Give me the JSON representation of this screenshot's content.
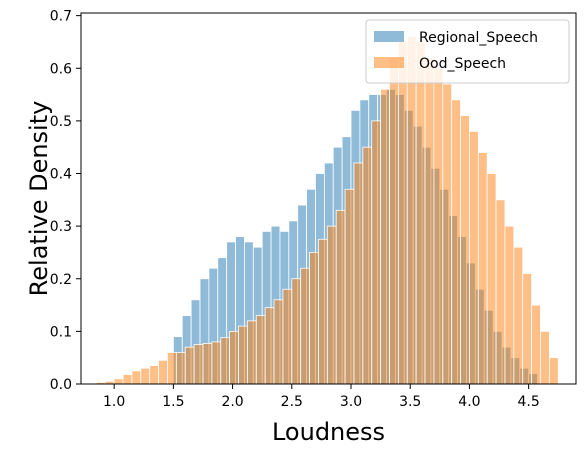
{
  "chart_data": {
    "type": "bar",
    "subtype": "overlapping-histogram",
    "title": "",
    "xlabel": "Loudness",
    "ylabel": "Relative Density",
    "xlim": [
      0.72,
      4.9
    ],
    "ylim": [
      0,
      0.705
    ],
    "xticks": [
      "1.0",
      "1.5",
      "2.0",
      "2.5",
      "3.0",
      "3.5",
      "4.0",
      "4.5"
    ],
    "yticks": [
      "0.0",
      "0.1",
      "0.2",
      "0.3",
      "0.4",
      "0.5",
      "0.6",
      "0.7"
    ],
    "grid": false,
    "legend_position": "top-right",
    "series": [
      {
        "name": "Regional_Speech",
        "color": "#1f77b4",
        "alpha": 0.5,
        "bins": [
          1.5,
          1.575,
          1.65,
          1.725,
          1.8,
          1.875,
          1.95,
          2.025,
          2.1,
          2.175,
          2.25,
          2.325,
          2.4,
          2.475,
          2.55,
          2.625,
          2.7,
          2.775,
          2.85,
          2.925,
          3.0,
          3.075,
          3.15,
          3.225,
          3.3,
          3.375,
          3.45,
          3.525,
          3.6,
          3.675,
          3.75,
          3.825,
          3.9,
          3.975,
          4.05,
          4.125,
          4.2,
          4.275,
          4.35,
          4.425,
          4.5
        ],
        "values": [
          0.09,
          0.13,
          0.16,
          0.2,
          0.22,
          0.24,
          0.27,
          0.28,
          0.27,
          0.26,
          0.29,
          0.3,
          0.29,
          0.31,
          0.34,
          0.37,
          0.4,
          0.42,
          0.45,
          0.47,
          0.52,
          0.54,
          0.55,
          0.55,
          0.56,
          0.55,
          0.52,
          0.49,
          0.45,
          0.41,
          0.37,
          0.32,
          0.28,
          0.23,
          0.18,
          0.14,
          0.1,
          0.07,
          0.05,
          0.03,
          0.02
        ]
      },
      {
        "name": "Ood_Speech",
        "color": "#ff7f0e",
        "alpha": 0.5,
        "bins": [
          0.85,
          0.925,
          1.0,
          1.075,
          1.15,
          1.225,
          1.3,
          1.375,
          1.45,
          1.525,
          1.6,
          1.675,
          1.75,
          1.825,
          1.9,
          1.975,
          2.05,
          2.125,
          2.2,
          2.275,
          2.35,
          2.425,
          2.5,
          2.575,
          2.65,
          2.725,
          2.8,
          2.875,
          2.95,
          3.025,
          3.1,
          3.175,
          3.25,
          3.325,
          3.4,
          3.475,
          3.55,
          3.625,
          3.7,
          3.775,
          3.85,
          3.925,
          4.0,
          4.075,
          4.15,
          4.225,
          4.3,
          4.375,
          4.45,
          4.525,
          4.6,
          4.675
        ],
        "values": [
          0.003,
          0.005,
          0.01,
          0.018,
          0.025,
          0.03,
          0.035,
          0.045,
          0.06,
          0.06,
          0.07,
          0.075,
          0.077,
          0.08,
          0.088,
          0.1,
          0.11,
          0.12,
          0.13,
          0.145,
          0.16,
          0.18,
          0.2,
          0.22,
          0.25,
          0.275,
          0.3,
          0.33,
          0.37,
          0.42,
          0.45,
          0.5,
          0.56,
          0.62,
          0.65,
          0.66,
          0.65,
          0.62,
          0.6,
          0.57,
          0.54,
          0.51,
          0.48,
          0.44,
          0.4,
          0.35,
          0.3,
          0.26,
          0.21,
          0.15,
          0.1,
          0.05
        ]
      }
    ]
  }
}
